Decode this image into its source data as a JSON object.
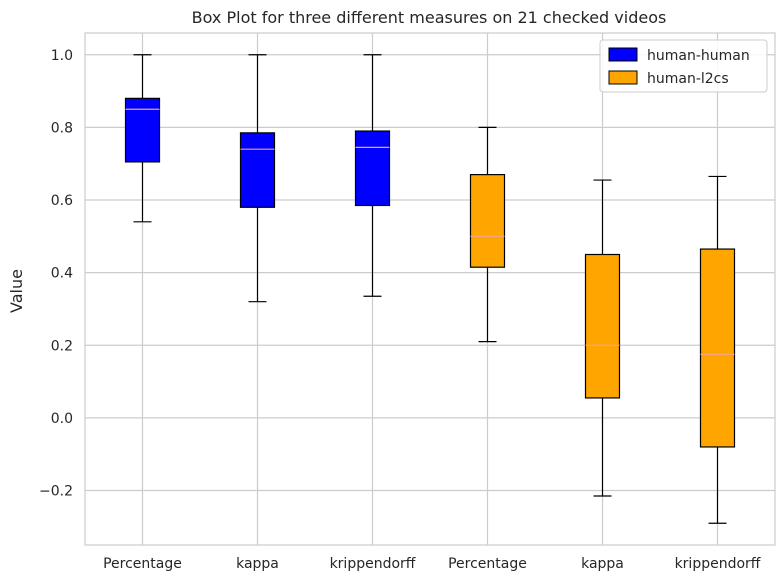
{
  "chart_data": {
    "type": "box",
    "title": "Box Plot for three different measures on 21 checked videos",
    "xlabel": "",
    "ylabel": "Value",
    "ylim": [
      -0.35,
      1.06
    ],
    "yticks": [
      1.0,
      0.8,
      0.6,
      0.4,
      0.2,
      0.0,
      -0.2
    ],
    "ytick_labels": [
      "1.0",
      "0.8",
      "0.6",
      "0.4",
      "0.2",
      "0.0",
      "−0.2"
    ],
    "categories": [
      "Percentage",
      "kappa",
      "krippendorff",
      "Percentage",
      "kappa",
      "krippendorff"
    ],
    "grid": true,
    "legend_position": "top-right",
    "series": [
      {
        "name": "human-human",
        "color": "#0000ff",
        "boxes": [
          {
            "category_index": 0,
            "whisker_low": 0.54,
            "q1": 0.705,
            "median": 0.85,
            "q3": 0.88,
            "whisker_high": 1.0
          },
          {
            "category_index": 1,
            "whisker_low": 0.32,
            "q1": 0.58,
            "median": 0.74,
            "q3": 0.785,
            "whisker_high": 1.0
          },
          {
            "category_index": 2,
            "whisker_low": 0.335,
            "q1": 0.585,
            "median": 0.745,
            "q3": 0.79,
            "whisker_high": 1.0
          }
        ]
      },
      {
        "name": "human-l2cs",
        "color": "#ffa500",
        "boxes": [
          {
            "category_index": 3,
            "whisker_low": 0.21,
            "q1": 0.415,
            "median": 0.5,
            "q3": 0.67,
            "whisker_high": 0.8
          },
          {
            "category_index": 4,
            "whisker_low": -0.215,
            "q1": 0.055,
            "median": 0.2,
            "q3": 0.45,
            "whisker_high": 0.655
          },
          {
            "category_index": 5,
            "whisker_low": -0.29,
            "q1": -0.08,
            "median": 0.175,
            "q3": 0.465,
            "whisker_high": 0.665
          }
        ]
      }
    ],
    "median_color": "#f4a582",
    "grid_color": "#cccccc",
    "frame_color": "#cccccc"
  }
}
